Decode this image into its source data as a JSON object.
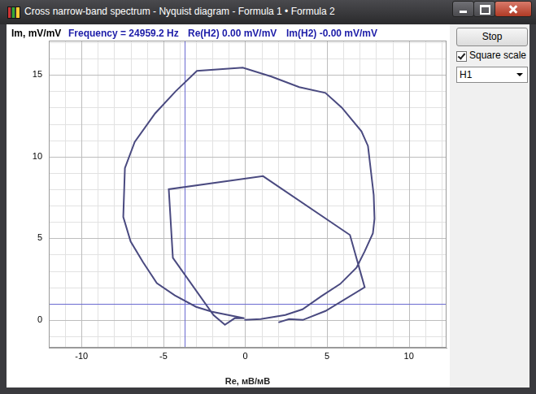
{
  "window": {
    "title": "Cross narrow-band spectrum - Nyquist diagram - Formula 1 • Formula 2",
    "readout": [
      "Frequency = 24959.2 Hz",
      "Re(H2) 0.00 mV/mV",
      "Im(H2) -0.00 mV/mV"
    ],
    "controls": {
      "button": "Stop",
      "checkbox": {
        "label": "Square scale",
        "checked": true
      },
      "dropdown": "H1"
    }
  },
  "chart_data": {
    "type": "line",
    "x_label": "Re, мВ/мВ",
    "y_label": "Im, mV/mV",
    "x": [
      2.03,
      2.68,
      3.52,
      4.91,
      7.3,
      6.4,
      1.09,
      -4.67,
      -4.42,
      -1.94,
      -1.24,
      -0.65,
      -0.05,
      -2.03,
      -3.0,
      -4.3,
      -5.4,
      -6.25,
      -7.0,
      -7.45,
      -7.35,
      -6.75,
      -5.5,
      -4.25,
      -2.95,
      -0.15,
      1.6,
      3.3,
      4.9,
      5.9,
      7.1,
      7.5,
      7.85,
      7.9,
      7.8,
      7.3,
      6.8,
      5.8,
      4.65,
      3.5,
      2.45,
      0.95,
      -0.05
    ],
    "values": [
      -0.15,
      0.05,
      0.0,
      0.55,
      2.0,
      5.2,
      8.8,
      8.0,
      3.8,
      0.3,
      -0.3,
      0.1,
      0.1,
      0.5,
      0.8,
      1.5,
      2.25,
      3.55,
      4.8,
      6.3,
      9.3,
      10.9,
      12.65,
      14.0,
      15.25,
      15.45,
      14.9,
      14.25,
      13.9,
      13.0,
      11.55,
      10.65,
      7.65,
      6.2,
      5.3,
      4.2,
      3.2,
      2.2,
      1.45,
      0.65,
      0.3,
      0.05,
      0.0
    ],
    "color": "#4a4a80",
    "marker": "none",
    "line_style": "solid",
    "xlim": [
      -12,
      12.3
    ],
    "ylim": [
      -1.7,
      17.1
    ],
    "xticks": [
      -10,
      -5,
      0,
      5,
      10
    ],
    "yticks": [
      0,
      5,
      10,
      15
    ],
    "grid": true,
    "crosshair": {
      "x": -3.7,
      "y": 1.0
    }
  }
}
